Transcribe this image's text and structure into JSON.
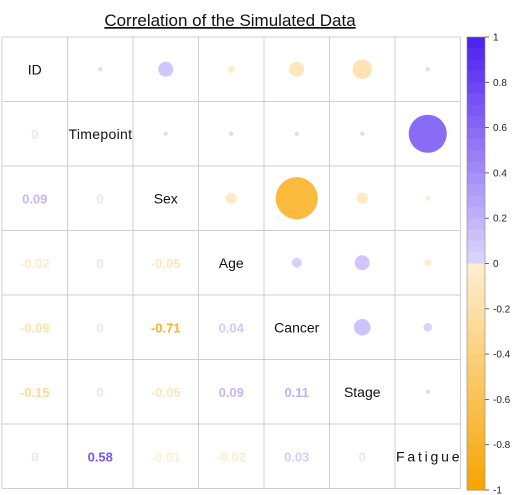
{
  "chart_data": {
    "type": "heatmap",
    "title": "Correlation of the Simulated Data",
    "variables": [
      "ID",
      "Timepoint",
      "Sex",
      "Age",
      "Cancer",
      "Stage",
      "Fatigue"
    ],
    "matrix": [
      [
        1,
        0,
        0.09,
        -0.02,
        -0.09,
        -0.15,
        0
      ],
      [
        0,
        1,
        0,
        0,
        0,
        0,
        0.58
      ],
      [
        0.09,
        0,
        1,
        -0.05,
        -0.71,
        -0.05,
        -0.01
      ],
      [
        -0.02,
        0,
        -0.05,
        1,
        0.04,
        0.09,
        -0.02
      ],
      [
        -0.09,
        0,
        -0.71,
        0.04,
        1,
        0.11,
        0.03
      ],
      [
        -0.15,
        0,
        -0.05,
        0.09,
        0.11,
        1,
        0
      ],
      [
        0,
        0.58,
        -0.01,
        -0.02,
        0.03,
        0,
        1
      ]
    ],
    "lower_labels": {
      "r1c0": "0",
      "r2c0": "0.09",
      "r2c1": "0",
      "r3c0": "-0.02",
      "r3c1": "0",
      "r3c2": "-0.05",
      "r4c0": "-0.09",
      "r4c1": "0",
      "r4c2": "-0.71",
      "r4c3": "0.04",
      "r5c0": "-0.15",
      "r5c1": "0",
      "r5c2": "-0.05",
      "r5c3": "0.09",
      "r5c4": "0.11",
      "r6c0": "0",
      "r6c1": "0.58",
      "r6c2": "-0.01",
      "r6c3": "-0.02",
      "r6c4": "0.03",
      "r6c5": "0"
    },
    "upper_display": "circle",
    "lower_display": "number",
    "colorbar": {
      "range": [
        -1,
        1
      ],
      "ticks": [
        "1",
        "0.8",
        "0.6",
        "0.4",
        "0.2",
        "0",
        "-0.2",
        "-0.4",
        "-0.6",
        "-0.8",
        "-1"
      ],
      "positive_color": "#4b1ff0",
      "negative_color": "#f7a400",
      "neutral_color": "#ffffff"
    },
    "grid": true
  }
}
